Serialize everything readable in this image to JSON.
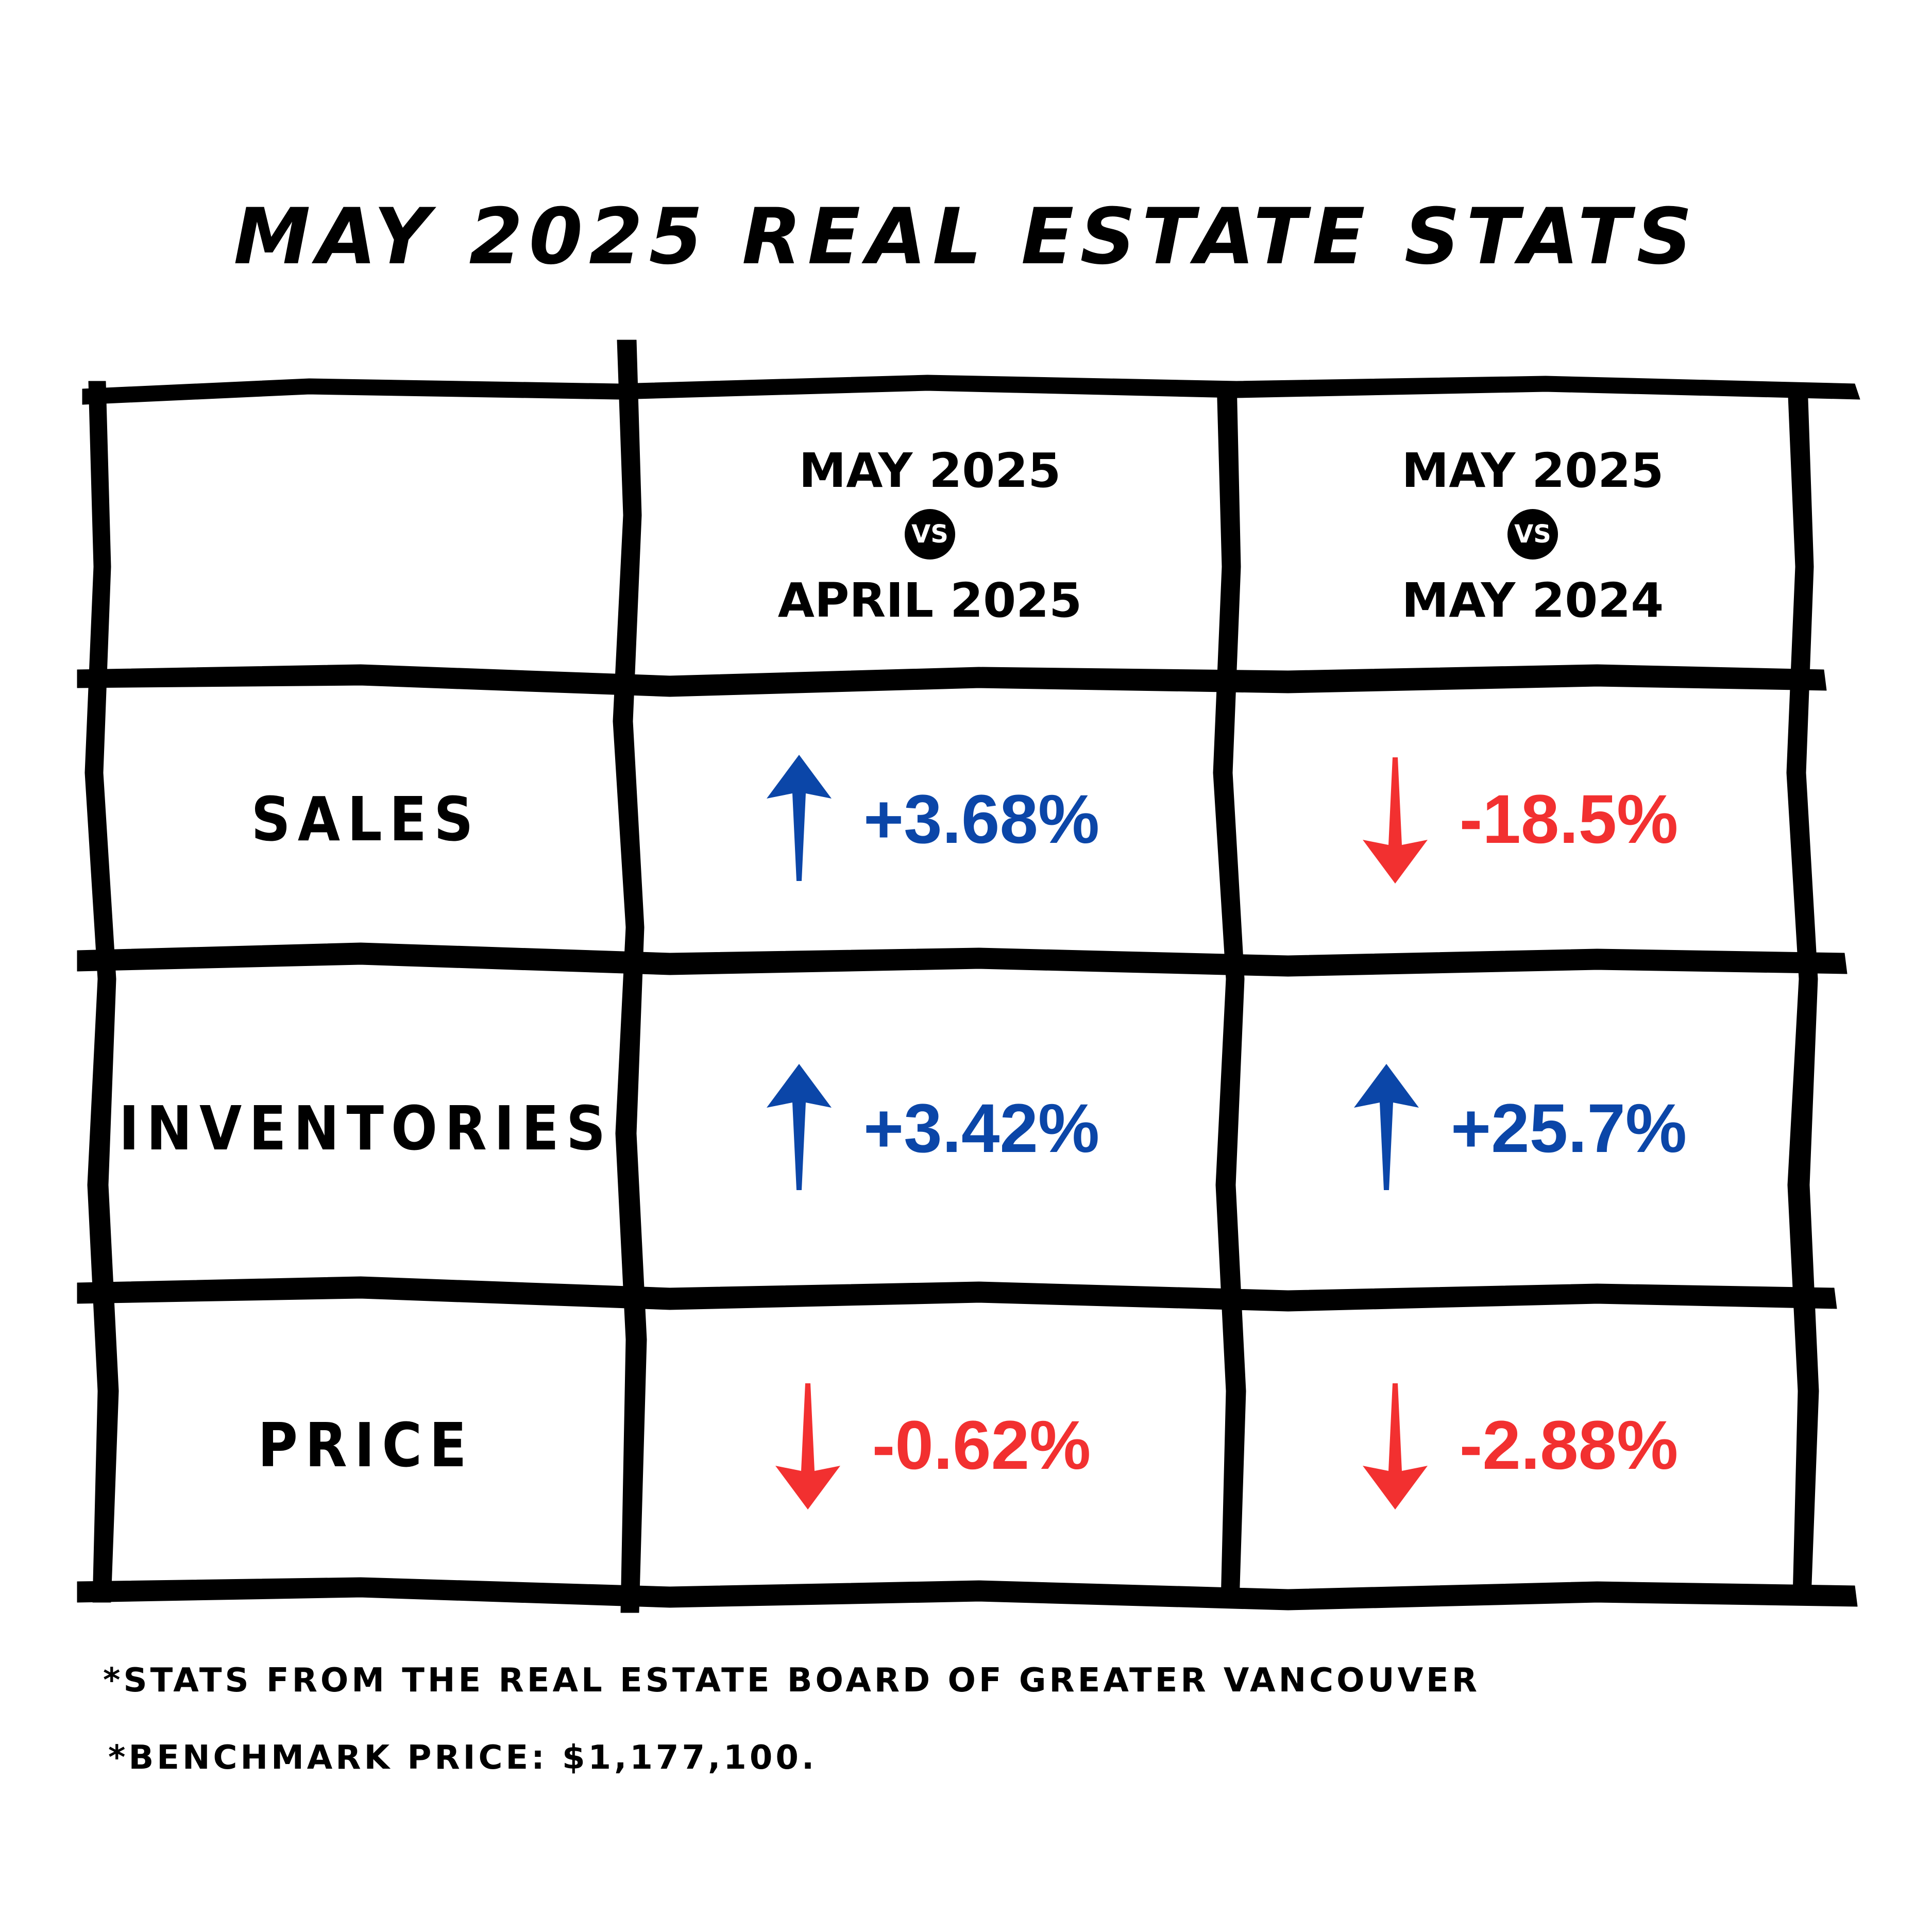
{
  "title": "May 2025 Real Estate Stats",
  "headers": {
    "col1": {
      "top": "May 2025",
      "vs": "vs",
      "bottom": "April 2025"
    },
    "col2": {
      "top": "May 2025",
      "vs": "vs",
      "bottom": "May 2024"
    }
  },
  "rows": [
    {
      "label": "Sales",
      "mom": {
        "value": "+3.68%",
        "direction": "up",
        "color": "#0b46a8"
      },
      "yoy": {
        "value": "-18.5%",
        "direction": "down",
        "color": "#f23030"
      }
    },
    {
      "label": "Inventories",
      "mom": {
        "value": "+3.42%",
        "direction": "up",
        "color": "#0b46a8"
      },
      "yoy": {
        "value": "+25.7%",
        "direction": "up",
        "color": "#0b46a8"
      }
    },
    {
      "label": "Price",
      "mom": {
        "value": "-0.62%",
        "direction": "down",
        "color": "#f23030"
      },
      "yoy": {
        "value": "-2.88%",
        "direction": "down",
        "color": "#f23030"
      }
    }
  ],
  "footnotes": [
    "*Stats from the Real Estate Board of Greater Vancouver",
    "*Benchmark Price: $1,177,100."
  ],
  "colors": {
    "up": "#0b46a8",
    "down": "#f23030",
    "ink": "#000000"
  },
  "icons": {
    "up": "arrow-up-icon",
    "down": "arrow-down-icon"
  }
}
